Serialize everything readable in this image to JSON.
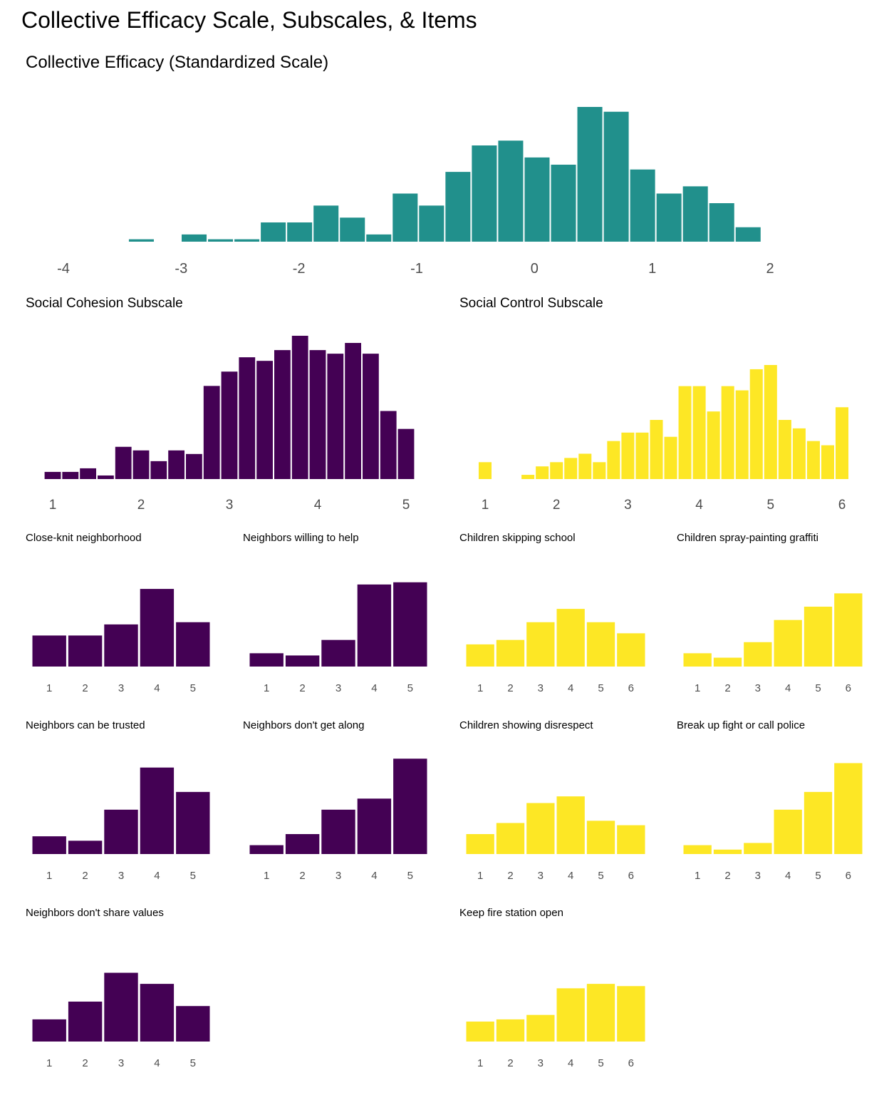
{
  "page": {
    "title": "Collective Efficacy Scale, Subscales, & Items",
    "colors": {
      "scale": "#21908C",
      "cohesion": "#440154",
      "control": "#FDE725",
      "tick_text": "#4D4D4D"
    }
  },
  "chart_data": [
    {
      "id": "scale",
      "type": "bar",
      "title": "Collective Efficacy (Standardized Scale)",
      "xlabel": "",
      "ylabel": "",
      "color": "#21908C",
      "x_ticks": [
        -4,
        -3,
        -2,
        -1,
        0,
        1,
        2
      ],
      "xlim": [
        -4.0,
        2.0
      ],
      "bin_width": 0.224,
      "bin_start": -3.45,
      "values": [
        1,
        0,
        3,
        1,
        1,
        8,
        8,
        15,
        10,
        3,
        20,
        15,
        29,
        40,
        42,
        35,
        32,
        56,
        54,
        30,
        20,
        23,
        16,
        6
      ],
      "grid": false
    },
    {
      "id": "cohesion",
      "type": "bar",
      "title": "Social Cohesion Subscale",
      "color": "#440154",
      "x_ticks": [
        1,
        2,
        3,
        4,
        5
      ],
      "xlim": [
        1,
        5
      ],
      "bin_start": 0.9,
      "bin_width": 0.2,
      "values": [
        2,
        2,
        3,
        1,
        9,
        8,
        5,
        8,
        7,
        26,
        30,
        34,
        33,
        36,
        40,
        36,
        35,
        38,
        35,
        19,
        14
      ],
      "grid": false
    },
    {
      "id": "control",
      "type": "bar",
      "title": "Social Control Subscale",
      "color": "#FDE725",
      "x_ticks": [
        1,
        2,
        3,
        4,
        5,
        6
      ],
      "xlim": [
        1,
        6
      ],
      "bin_start": 0.9,
      "bin_width": 0.2,
      "values": [
        4,
        0,
        0,
        1,
        3,
        4,
        5,
        6,
        4,
        9,
        11,
        11,
        14,
        10,
        22,
        22,
        16,
        22,
        21,
        26,
        27,
        14,
        12,
        9,
        8,
        17
      ],
      "grid": false
    }
  ],
  "items": {
    "cohesion": [
      {
        "title": "Close-knit neighborhood",
        "categories": [
          1,
          2,
          3,
          4,
          5
        ],
        "values": [
          14,
          14,
          19,
          35,
          20
        ]
      },
      {
        "title": "Neighbors willing to help",
        "categories": [
          1,
          2,
          3,
          4,
          5
        ],
        "values": [
          6,
          5,
          12,
          37,
          38
        ]
      },
      {
        "title": "Neighbors can be trusted",
        "categories": [
          1,
          2,
          3,
          4,
          5
        ],
        "values": [
          8,
          6,
          20,
          39,
          28
        ]
      },
      {
        "title": "Neighbors don't get along",
        "categories": [
          1,
          2,
          3,
          4,
          5
        ],
        "values": [
          4,
          9,
          20,
          25,
          43
        ]
      },
      {
        "title": "Neighbors don't share values",
        "categories": [
          1,
          2,
          3,
          4,
          5
        ],
        "values": [
          10,
          18,
          31,
          26,
          16
        ]
      }
    ],
    "control": [
      {
        "title": "Children skipping school",
        "categories": [
          1,
          2,
          3,
          4,
          5,
          6
        ],
        "values": [
          10,
          12,
          20,
          26,
          20,
          15
        ]
      },
      {
        "title": "Children spray-painting graffiti",
        "categories": [
          1,
          2,
          3,
          4,
          5,
          6
        ],
        "values": [
          6,
          4,
          11,
          21,
          27,
          33
        ]
      },
      {
        "title": "Children showing disrespect",
        "categories": [
          1,
          2,
          3,
          4,
          5,
          6
        ],
        "values": [
          9,
          14,
          23,
          26,
          15,
          13
        ]
      },
      {
        "title": "Break up fight or call police",
        "categories": [
          1,
          2,
          3,
          4,
          5,
          6
        ],
        "values": [
          4,
          2,
          5,
          20,
          28,
          41
        ]
      },
      {
        "title": "Keep fire station open",
        "categories": [
          1,
          2,
          3,
          4,
          5,
          6
        ],
        "values": [
          9,
          10,
          12,
          24,
          26,
          25
        ]
      }
    ]
  }
}
